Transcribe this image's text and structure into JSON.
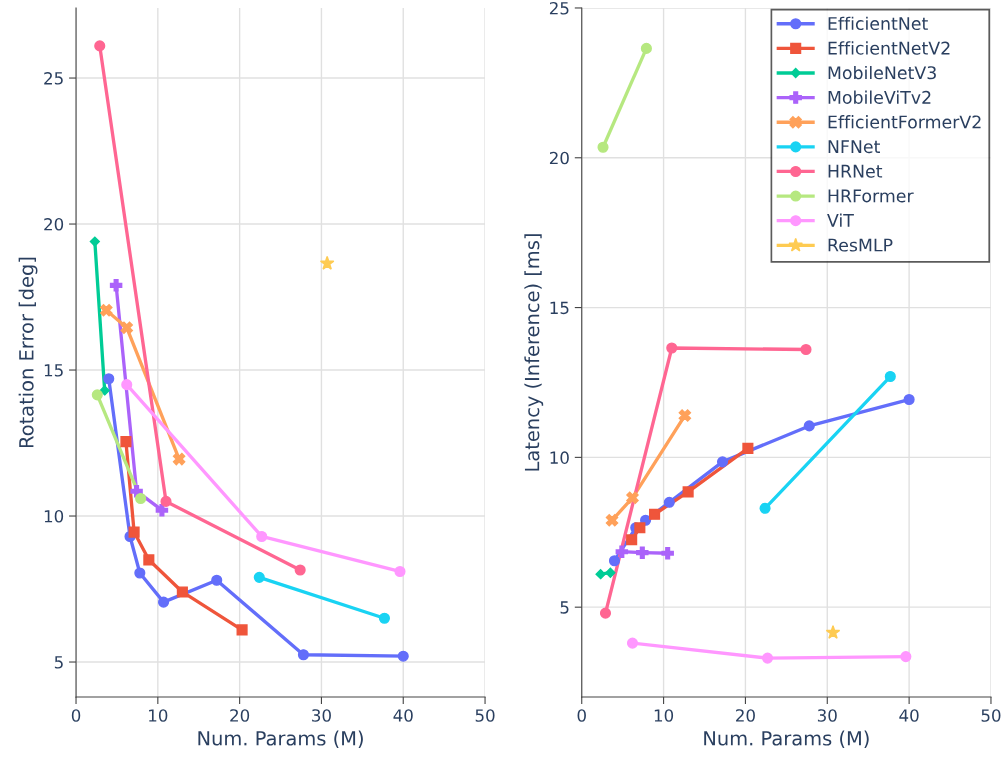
{
  "chart_data": [
    {
      "type": "line",
      "xlabel": "Num. Params (M)",
      "ylabel": "Rotation Error [deg]",
      "xlim": [
        0,
        50
      ],
      "xticks": [
        0,
        10,
        20,
        30,
        40,
        50
      ],
      "ylim": [
        3.8,
        27.4
      ],
      "yticks": [
        5,
        10,
        15,
        20,
        25
      ],
      "grid": true,
      "legend": false,
      "series": [
        {
          "color": "#636efa",
          "marker": "circle",
          "x": [
            4.0,
            6.6,
            7.8,
            10.7,
            17.2,
            27.8,
            40.0
          ],
          "values": [
            14.7,
            9.3,
            8.05,
            7.05,
            7.8,
            5.25,
            5.2
          ]
        },
        {
          "color": "#ef553b",
          "marker": "square",
          "x": [
            6.1,
            7.1,
            8.9,
            13.0,
            20.3
          ],
          "values": [
            12.55,
            9.45,
            8.5,
            7.4,
            6.1
          ]
        },
        {
          "color": "#00cc96",
          "marker": "diamond",
          "x": [
            2.3,
            3.5
          ],
          "values": [
            19.4,
            14.3
          ]
        },
        {
          "color": "#ab63fa",
          "marker": "cross",
          "x": [
            4.9,
            7.4,
            10.5
          ],
          "values": [
            17.9,
            10.85,
            10.2
          ]
        },
        {
          "color": "#ffa15a",
          "marker": "x",
          "x": [
            3.7,
            6.2,
            12.6
          ],
          "values": [
            17.05,
            16.45,
            11.95
          ]
        },
        {
          "color": "#19d3f3",
          "marker": "circle",
          "x": [
            22.4,
            37.7
          ],
          "values": [
            7.9,
            6.5
          ]
        },
        {
          "color": "#ff6692",
          "marker": "circle",
          "x": [
            2.9,
            11.0,
            27.4
          ],
          "values": [
            26.1,
            10.5,
            8.15
          ]
        },
        {
          "color": "#b6e880",
          "marker": "circle",
          "x": [
            2.6,
            7.9
          ],
          "values": [
            14.15,
            10.6
          ]
        },
        {
          "color": "#ff97ff",
          "marker": "circle",
          "x": [
            6.2,
            22.7,
            39.6
          ],
          "values": [
            14.5,
            9.3,
            8.1
          ]
        },
        {
          "color": "#fecb52",
          "marker": "star",
          "x": [
            30.7
          ],
          "values": [
            18.65
          ]
        }
      ]
    },
    {
      "type": "line",
      "xlabel": "Num. Params (M)",
      "ylabel": "Latency (Inference) [ms]",
      "xlim": [
        0,
        50
      ],
      "xticks": [
        0,
        10,
        20,
        30,
        40,
        50
      ],
      "ylim": [
        2,
        25
      ],
      "yticks": [
        5,
        10,
        15,
        20,
        25
      ],
      "grid": true,
      "legend": "top right",
      "series": [
        {
          "name": "EfficientNet",
          "color": "#636efa",
          "marker": "circle",
          "x": [
            4.0,
            6.6,
            7.8,
            10.7,
            17.2,
            27.8,
            40.0
          ],
          "values": [
            6.55,
            7.65,
            7.9,
            8.5,
            9.85,
            11.05,
            11.93
          ]
        },
        {
          "name": "EfficientNetV2",
          "color": "#ef553b",
          "marker": "square",
          "x": [
            6.1,
            7.1,
            8.9,
            13.0,
            20.3
          ],
          "values": [
            7.25,
            7.65,
            8.1,
            8.85,
            10.3
          ]
        },
        {
          "name": "MobileNetV3",
          "color": "#00cc96",
          "marker": "diamond",
          "x": [
            2.3,
            3.5
          ],
          "values": [
            6.1,
            6.15
          ]
        },
        {
          "name": "MobileViTv2",
          "color": "#ab63fa",
          "marker": "cross",
          "x": [
            4.9,
            7.4,
            10.5
          ],
          "values": [
            6.85,
            6.82,
            6.8
          ]
        },
        {
          "name": "EfficientFormerV2",
          "color": "#ffa15a",
          "marker": "x",
          "x": [
            3.7,
            6.2,
            12.6
          ],
          "values": [
            7.9,
            8.65,
            11.4
          ]
        },
        {
          "name": "NFNet",
          "color": "#19d3f3",
          "marker": "circle",
          "x": [
            22.4,
            37.7
          ],
          "values": [
            8.3,
            12.7
          ]
        },
        {
          "name": "HRNet",
          "color": "#ff6692",
          "marker": "circle",
          "x": [
            2.9,
            11.0,
            27.4
          ],
          "values": [
            4.8,
            13.65,
            13.6
          ]
        },
        {
          "name": "HRFormer",
          "color": "#b6e880",
          "marker": "circle",
          "x": [
            2.6,
            7.9
          ],
          "values": [
            20.35,
            23.65
          ]
        },
        {
          "name": "ViT",
          "color": "#ff97ff",
          "marker": "circle",
          "x": [
            6.2,
            22.7,
            39.6
          ],
          "values": [
            3.8,
            3.3,
            3.35
          ]
        },
        {
          "name": "ResMLP",
          "color": "#fecb52",
          "marker": "star",
          "x": [
            30.7
          ],
          "values": [
            4.15
          ]
        }
      ]
    }
  ]
}
